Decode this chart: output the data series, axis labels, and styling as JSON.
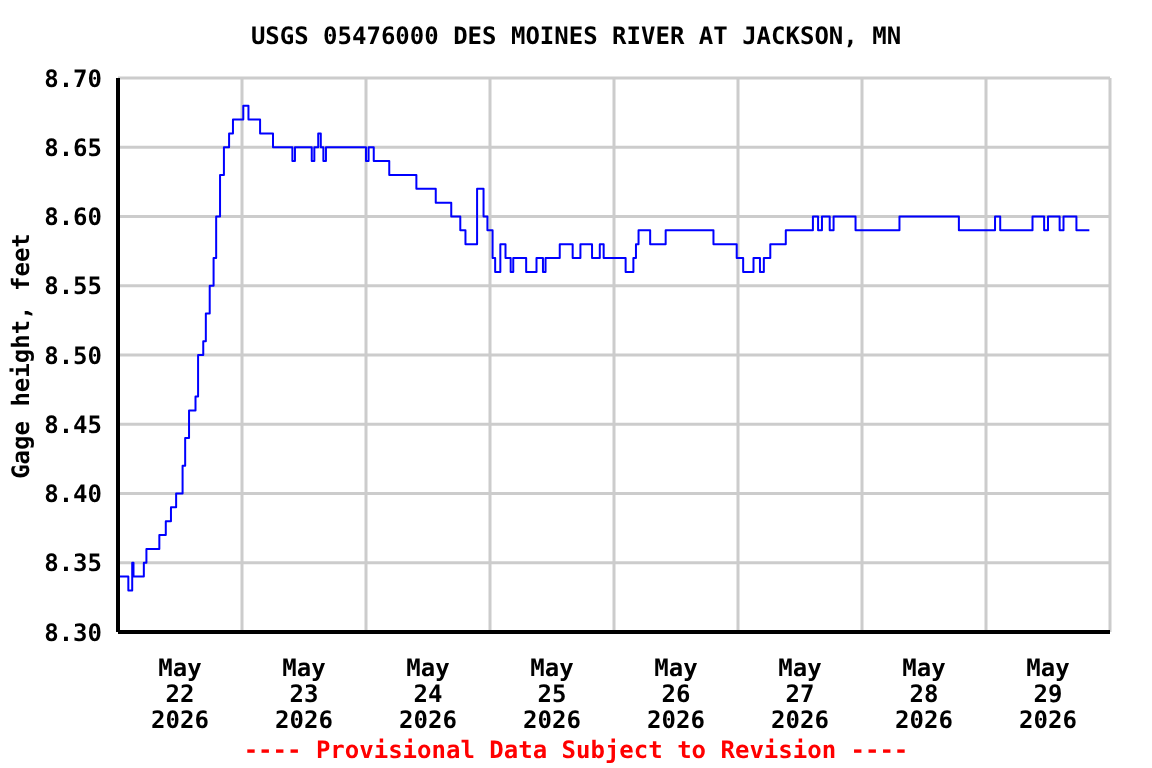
{
  "chart_data": {
    "type": "step",
    "title": "USGS 05476000 DES MOINES RIVER AT JACKSON, MN",
    "ylabel": "Gage height, feet",
    "annotations": [
      "---- Provisional Data Subject to Revision ----"
    ],
    "x": [
      "2026-05-22T00:00",
      "2026-05-22T02:00",
      "2026-05-22T02:45",
      "2026-05-22T03:00",
      "2026-05-22T05:00",
      "2026-05-22T05:30",
      "2026-05-22T08:00",
      "2026-05-22T09:15",
      "2026-05-22T10:15",
      "2026-05-22T11:15",
      "2026-05-22T12:30",
      "2026-05-22T13:00",
      "2026-05-22T13:45",
      "2026-05-22T15:00",
      "2026-05-22T15:30",
      "2026-05-22T16:30",
      "2026-05-22T17:00",
      "2026-05-22T17:45",
      "2026-05-22T18:30",
      "2026-05-22T19:00",
      "2026-05-22T19:45",
      "2026-05-22T20:30",
      "2026-05-22T21:30",
      "2026-05-22T22:15",
      "2026-05-23T00:15",
      "2026-05-23T01:15",
      "2026-05-23T03:30",
      "2026-05-23T06:00",
      "2026-05-23T09:45",
      "2026-05-23T10:15",
      "2026-05-23T13:30",
      "2026-05-23T14:00",
      "2026-05-23T14:45",
      "2026-05-23T15:15",
      "2026-05-23T15:45",
      "2026-05-23T16:15",
      "2026-05-24T00:00",
      "2026-05-24T00:30",
      "2026-05-24T01:30",
      "2026-05-24T04:30",
      "2026-05-24T09:45",
      "2026-05-24T13:30",
      "2026-05-24T16:30",
      "2026-05-24T18:15",
      "2026-05-24T19:15",
      "2026-05-24T21:30",
      "2026-05-24T22:45",
      "2026-05-24T23:30",
      "2026-05-25T00:30",
      "2026-05-25T01:00",
      "2026-05-25T02:00",
      "2026-05-25T03:00",
      "2026-05-25T04:00",
      "2026-05-25T04:30",
      "2026-05-25T07:00",
      "2026-05-25T09:00",
      "2026-05-25T10:15",
      "2026-05-25T10:45",
      "2026-05-25T13:30",
      "2026-05-25T16:00",
      "2026-05-25T17:30",
      "2026-05-25T19:45",
      "2026-05-25T21:15",
      "2026-05-25T22:00",
      "2026-05-26T02:15",
      "2026-05-26T03:45",
      "2026-05-26T04:15",
      "2026-05-26T04:45",
      "2026-05-26T07:00",
      "2026-05-26T10:00",
      "2026-05-26T19:15",
      "2026-05-26T23:45",
      "2026-05-27T01:00",
      "2026-05-27T03:00",
      "2026-05-27T04:15",
      "2026-05-27T05:00",
      "2026-05-27T06:15",
      "2026-05-27T09:15",
      "2026-05-27T14:30",
      "2026-05-27T15:30",
      "2026-05-27T16:15",
      "2026-05-27T17:45",
      "2026-05-27T18:30",
      "2026-05-27T22:45",
      "2026-05-28T07:15",
      "2026-05-28T18:45",
      "2026-05-29T01:45",
      "2026-05-29T02:45",
      "2026-05-29T09:00",
      "2026-05-29T11:15",
      "2026-05-29T12:00",
      "2026-05-29T14:15",
      "2026-05-29T15:00",
      "2026-05-29T17:30",
      "2026-05-29T20:00"
    ],
    "series": [
      {
        "color": "#0000ff",
        "values": [
          8.34,
          8.33,
          8.35,
          8.34,
          8.35,
          8.36,
          8.37,
          8.38,
          8.39,
          8.4,
          8.42,
          8.44,
          8.46,
          8.47,
          8.5,
          8.51,
          8.53,
          8.55,
          8.57,
          8.6,
          8.63,
          8.65,
          8.66,
          8.67,
          8.68,
          8.67,
          8.66,
          8.65,
          8.64,
          8.65,
          8.64,
          8.65,
          8.66,
          8.65,
          8.64,
          8.65,
          8.64,
          8.65,
          8.64,
          8.63,
          8.62,
          8.61,
          8.6,
          8.59,
          8.58,
          8.62,
          8.6,
          8.59,
          8.57,
          8.56,
          8.58,
          8.57,
          8.56,
          8.57,
          8.56,
          8.57,
          8.56,
          8.57,
          8.58,
          8.57,
          8.58,
          8.57,
          8.58,
          8.57,
          8.56,
          8.57,
          8.58,
          8.59,
          8.58,
          8.59,
          8.58,
          8.57,
          8.56,
          8.57,
          8.56,
          8.57,
          8.58,
          8.59,
          8.6,
          8.59,
          8.6,
          8.59,
          8.6,
          8.59,
          8.6,
          8.59,
          8.6,
          8.59,
          8.6,
          8.59,
          8.6,
          8.59,
          8.6,
          8.59,
          8.59
        ]
      }
    ],
    "xlim": [
      "2026-05-22T00:00",
      "2026-05-30T00:00"
    ],
    "xticks": [
      {
        "value": "2026-05-22T00:00",
        "label": null
      },
      {
        "value": "2026-05-22T12:00",
        "label": "May\n22\n2026"
      },
      {
        "value": "2026-05-23T00:00",
        "label": null
      },
      {
        "value": "2026-05-23T12:00",
        "label": "May\n23\n2026"
      },
      {
        "value": "2026-05-24T00:00",
        "label": null
      },
      {
        "value": "2026-05-24T12:00",
        "label": "May\n24\n2026"
      },
      {
        "value": "2026-05-25T00:00",
        "label": null
      },
      {
        "value": "2026-05-25T12:00",
        "label": "May\n25\n2026"
      },
      {
        "value": "2026-05-26T00:00",
        "label": null
      },
      {
        "value": "2026-05-26T12:00",
        "label": "May\n26\n2026"
      },
      {
        "value": "2026-05-27T00:00",
        "label": null
      },
      {
        "value": "2026-05-27T12:00",
        "label": "May\n27\n2026"
      },
      {
        "value": "2026-05-28T00:00",
        "label": null
      },
      {
        "value": "2026-05-28T12:00",
        "label": "May\n28\n2026"
      },
      {
        "value": "2026-05-29T00:00",
        "label": null
      },
      {
        "value": "2026-05-29T12:00",
        "label": "May\n29\n2026"
      },
      {
        "value": "2026-05-30T00:00",
        "label": null
      }
    ],
    "ylim": [
      8.3,
      8.7
    ],
    "yticks": [
      {
        "value": 8.3,
        "label": "8.30"
      },
      {
        "value": 8.35,
        "label": "8.35"
      },
      {
        "value": 8.4,
        "label": "8.40"
      },
      {
        "value": 8.45,
        "label": "8.45"
      },
      {
        "value": 8.5,
        "label": "8.50"
      },
      {
        "value": 8.55,
        "label": "8.55"
      },
      {
        "value": 8.6,
        "label": "8.60"
      },
      {
        "value": 8.65,
        "label": "8.65"
      },
      {
        "value": 8.7,
        "label": "8.70"
      }
    ],
    "grid": true,
    "legend": false,
    "marker": "none",
    "line_style": "solid"
  }
}
